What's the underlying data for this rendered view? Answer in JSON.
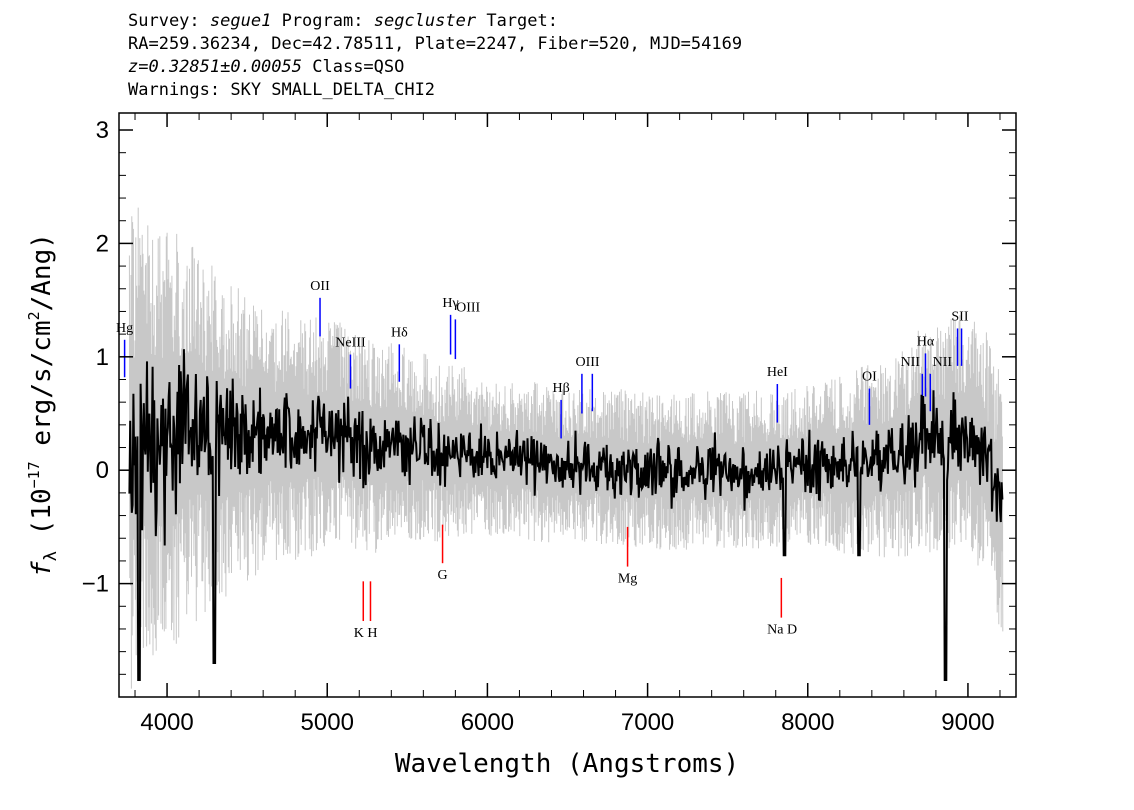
{
  "header": {
    "survey_label": "Survey:",
    "survey_value": "segue1",
    "program_label": "Program:",
    "program_value": "segcluster",
    "target_label": "Target:",
    "line2": "RA=259.36234, Dec=42.78511, Plate=2247, Fiber=520, MJD=54169",
    "redshift": "z=0.32851±0.00055",
    "class_text": "Class=QSO",
    "warnings": "Warnings: SKY SMALL_DELTA_CHI2"
  },
  "colors": {
    "spectrum": "#000000",
    "noise": "#c8c8c8",
    "emission": "#0000ff",
    "absorption": "#ff0000"
  },
  "chart_data": {
    "type": "line",
    "xlabel": "Wavelength (Angstroms)",
    "ylabel_parts": [
      "f",
      "λ",
      " (10",
      "−17",
      " erg/s/cm",
      "2",
      "/Ang)"
    ],
    "xlim": [
      3700,
      9300
    ],
    "ylim": [
      -2.0,
      3.15
    ],
    "x_ticks": [
      4000,
      5000,
      6000,
      7000,
      8000,
      9000
    ],
    "x_tick_labels": [
      "4000",
      "5000",
      "6000",
      "7000",
      "8000",
      "9000"
    ],
    "y_ticks": [
      -1,
      0,
      1,
      2,
      3
    ],
    "y_tick_labels": [
      "−1",
      "0",
      "1",
      "2",
      "3"
    ],
    "grid": false,
    "series": [
      {
        "x": [
          3800,
          3900,
          4000,
          4100,
          4200,
          4300,
          4400,
          4500,
          4600,
          4700,
          4800,
          4900,
          5000,
          5100,
          5200,
          5300,
          5400,
          5500,
          5600,
          5700,
          5800,
          5900,
          6000,
          6200,
          6400,
          6600,
          6800,
          7000,
          7200,
          7400,
          7600,
          7800,
          8000,
          8200,
          8400,
          8600,
          8700,
          8800,
          8900,
          9000,
          9100,
          9200
        ],
        "y": [
          0.2,
          0.3,
          0.25,
          0.3,
          0.35,
          0.3,
          0.3,
          0.3,
          0.3,
          0.28,
          0.28,
          0.3,
          0.32,
          0.3,
          0.25,
          0.2,
          0.25,
          0.2,
          0.2,
          0.15,
          0.18,
          0.15,
          0.12,
          0.1,
          0.05,
          0.05,
          0.02,
          0.0,
          0.0,
          0.0,
          0.0,
          0.0,
          0.05,
          0.05,
          0.1,
          0.15,
          0.3,
          0.25,
          0.3,
          0.3,
          0.15,
          -0.3
        ]
      }
    ],
    "emission_lines": [
      {
        "label": "Hg",
        "x": 3735,
        "y1": 0.82,
        "y2": 1.15
      },
      {
        "label": "OII",
        "x": 4955,
        "y1": 1.18,
        "y2": 1.52
      },
      {
        "label": "NeIII",
        "x": 5145,
        "y1": 0.72,
        "y2": 1.02
      },
      {
        "label": "Hδ",
        "x": 5450,
        "y1": 0.78,
        "y2": 1.11
      },
      {
        "label": "Hγ",
        "x": 5770,
        "y1": 1.02,
        "y2": 1.37
      },
      {
        "label": "OIII",
        "x": 5800,
        "y1": 0.98,
        "y2": 1.33
      },
      {
        "label": "Hβ",
        "x": 6460,
        "y1": 0.28,
        "y2": 0.62
      },
      {
        "label": "OIII",
        "x": 6590,
        "y1": 0.5,
        "y2": 0.85
      },
      {
        "label": "OIII",
        "x": 6655,
        "y1": 0.52,
        "y2": 0.85
      },
      {
        "label": "HeI",
        "x": 7810,
        "y1": 0.42,
        "y2": 0.76
      },
      {
        "label": "OI",
        "x": 8385,
        "y1": 0.4,
        "y2": 0.72
      },
      {
        "label": "NII",
        "x": 8715,
        "y1": 0.52,
        "y2": 0.85
      },
      {
        "label": "Hα",
        "x": 8735,
        "y1": 0.65,
        "y2": 1.03
      },
      {
        "label": "NII",
        "x": 8765,
        "y1": 0.52,
        "y2": 0.85
      },
      {
        "label": "SII",
        "x": 8935,
        "y1": 0.92,
        "y2": 1.25
      },
      {
        "label": "SII",
        "x": 8960,
        "y1": 0.92,
        "y2": 1.25
      }
    ],
    "absorption_lines": [
      {
        "label": "K",
        "x": 5225,
        "y1": -1.33,
        "y2": -0.98
      },
      {
        "label": "H",
        "x": 5270,
        "y1": -1.33,
        "y2": -0.98
      },
      {
        "label": "G",
        "x": 5720,
        "y1": -0.82,
        "y2": -0.48
      },
      {
        "label": "Mg",
        "x": 6875,
        "y1": -0.85,
        "y2": -0.5
      },
      {
        "label": "Na D",
        "x": 7835,
        "y1": -1.3,
        "y2": -0.95
      }
    ],
    "line_labels": [
      {
        "text": "Hg",
        "x": 3735,
        "y": 1.22
      },
      {
        "text": "OII",
        "x": 4955,
        "y": 1.59
      },
      {
        "text": "NeIII",
        "x": 5145,
        "y": 1.09
      },
      {
        "text": "Hδ",
        "x": 5450,
        "y": 1.18
      },
      {
        "text": "Hγ",
        "x": 5770,
        "y": 1.44
      },
      {
        "text": "OIII",
        "x": 5880,
        "y": 1.4
      },
      {
        "text": "Hβ",
        "x": 6460,
        "y": 0.69
      },
      {
        "text": "OIII",
        "x": 6625,
        "y": 0.92
      },
      {
        "text": "HeI",
        "x": 7810,
        "y": 0.83
      },
      {
        "text": "OI",
        "x": 8385,
        "y": 0.79
      },
      {
        "text": "NII",
        "x": 8640,
        "y": 0.92
      },
      {
        "text": "Hα",
        "x": 8735,
        "y": 1.1
      },
      {
        "text": "NII",
        "x": 8840,
        "y": 0.92
      },
      {
        "text": "SII",
        "x": 8950,
        "y": 1.32
      },
      {
        "text": "K H",
        "x": 5240,
        "y": -1.47
      },
      {
        "text": "G",
        "x": 5720,
        "y": -0.96
      },
      {
        "text": "Mg",
        "x": 6875,
        "y": -0.99
      },
      {
        "text": "Na  D",
        "x": 7840,
        "y": -1.44
      }
    ]
  }
}
